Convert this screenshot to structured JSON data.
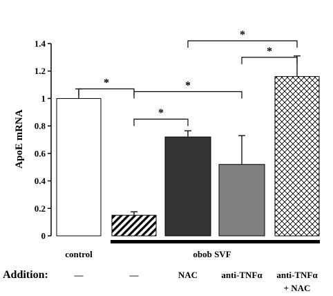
{
  "chart_data": {
    "type": "bar",
    "ylabel": "ApoE mRNA",
    "ylim": [
      0,
      1.4
    ],
    "yticks": [
      "0",
      "0.2",
      "0.4",
      "0.6",
      "0.8",
      "1",
      "1.2",
      "1.4"
    ],
    "bars": [
      {
        "value": 1.0,
        "error": 0.07,
        "fill": "white"
      },
      {
        "value": 0.15,
        "error": 0.025,
        "fill": "diagonal-hatch"
      },
      {
        "value": 0.72,
        "error": 0.045,
        "fill": "#333333"
      },
      {
        "value": 0.52,
        "error": 0.21,
        "fill": "#808080"
      },
      {
        "value": 1.16,
        "error": 0.15,
        "fill": "crosshatch"
      }
    ],
    "category_labels": [
      {
        "text": "control",
        "bar": 0
      },
      {
        "text": "obob SVF",
        "bar": 2
      }
    ],
    "addition": {
      "title": "Addition:",
      "labels": [
        "—",
        "—",
        "NAC",
        "anti-TNFα",
        "anti-TNFα",
        "+ NAC"
      ]
    },
    "significance": [
      {
        "from": 0,
        "to": 1,
        "y": 1.07,
        "label": "*"
      },
      {
        "from": 1,
        "to": 2,
        "y": 0.85,
        "label": "*"
      },
      {
        "from": 1,
        "to": 3,
        "y": 1.05,
        "label": "*"
      },
      {
        "from": 2,
        "to": 4,
        "y": 1.42,
        "label": "*"
      },
      {
        "from": 3,
        "to": 4,
        "y": 1.3,
        "label": "*"
      }
    ]
  }
}
